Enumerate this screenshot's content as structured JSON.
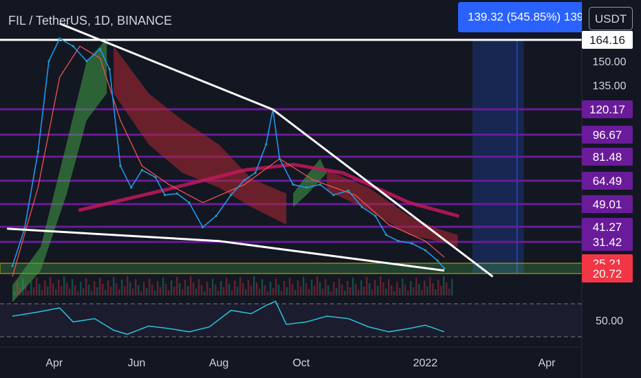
{
  "header": {
    "symbol": "FIL / TetherUS, 1D, BINANCE",
    "badge_text": "139.32 (545.85%) 139",
    "currency": "USDT"
  },
  "chart_data": {
    "type": "line",
    "title": "FIL / TetherUS, 1D, BINANCE",
    "x_ticks": [
      "Apr",
      "Jun",
      "Aug",
      "Oct",
      "2022",
      "Apr"
    ],
    "y_ticks": [
      "150.00",
      "135.00"
    ],
    "rsi_ticks": [
      "50.00"
    ],
    "grid": false,
    "price_labels": [
      {
        "value": 164.16,
        "text": "164.16",
        "color": "#ffffff",
        "text_color": "#131722"
      },
      {
        "value": 120.17,
        "text": "120.17",
        "color": "#6a1b9a",
        "text_color": "#ffffff"
      },
      {
        "value": 96.67,
        "text": "96.67",
        "color": "#6a1b9a",
        "text_color": "#ffffff"
      },
      {
        "value": 81.48,
        "text": "81.48",
        "color": "#6a1b9a",
        "text_color": "#ffffff"
      },
      {
        "value": 64.49,
        "text": "64.49",
        "color": "#6a1b9a",
        "text_color": "#ffffff"
      },
      {
        "value": 49.01,
        "text": "49.01",
        "color": "#6a1b9a",
        "text_color": "#ffffff"
      },
      {
        "value": 41.27,
        "text": "41.27",
        "color": "#6a1b9a",
        "text_color": "#ffffff"
      },
      {
        "value": 31.42,
        "text": "31.42",
        "color": "#6a1b9a",
        "text_color": "#ffffff"
      },
      {
        "value": 25.21,
        "text": "25.21",
        "color": "#f23645",
        "text_color": "#ffffff"
      },
      {
        "value": 20.72,
        "text": "20.72",
        "color": "#f23645",
        "text_color": "#ffffff"
      }
    ],
    "horizontal_levels": [
      164.16,
      120.17,
      96.67,
      81.48,
      64.49,
      49.01,
      41.27,
      31.42
    ],
    "support_zone": [
      20.72,
      25.21
    ],
    "price": [
      {
        "x": "2021-03-01",
        "y": 24
      },
      {
        "x": "2021-03-10",
        "y": 40
      },
      {
        "x": "2021-03-20",
        "y": 85
      },
      {
        "x": "2021-03-28",
        "y": 150
      },
      {
        "x": "2021-04-05",
        "y": 165
      },
      {
        "x": "2021-04-15",
        "y": 160
      },
      {
        "x": "2021-04-25",
        "y": 150
      },
      {
        "x": "2021-05-05",
        "y": 158
      },
      {
        "x": "2021-05-12",
        "y": 145
      },
      {
        "x": "2021-05-20",
        "y": 75
      },
      {
        "x": "2021-05-28",
        "y": 60
      },
      {
        "x": "2021-06-05",
        "y": 72
      },
      {
        "x": "2021-06-15",
        "y": 67
      },
      {
        "x": "2021-06-22",
        "y": 55
      },
      {
        "x": "2021-07-01",
        "y": 56
      },
      {
        "x": "2021-07-10",
        "y": 50
      },
      {
        "x": "2021-07-20",
        "y": 41
      },
      {
        "x": "2021-07-30",
        "y": 45
      },
      {
        "x": "2021-08-10",
        "y": 55
      },
      {
        "x": "2021-08-20",
        "y": 65
      },
      {
        "x": "2021-08-28",
        "y": 70
      },
      {
        "x": "2021-09-05",
        "y": 90
      },
      {
        "x": "2021-09-10",
        "y": 120
      },
      {
        "x": "2021-09-15",
        "y": 80
      },
      {
        "x": "2021-09-25",
        "y": 62
      },
      {
        "x": "2021-10-05",
        "y": 60
      },
      {
        "x": "2021-10-15",
        "y": 62
      },
      {
        "x": "2021-10-25",
        "y": 55
      },
      {
        "x": "2021-11-05",
        "y": 58
      },
      {
        "x": "2021-11-15",
        "y": 48
      },
      {
        "x": "2021-11-25",
        "y": 45
      },
      {
        "x": "2021-12-03",
        "y": 36
      },
      {
        "x": "2021-12-12",
        "y": 32
      },
      {
        "x": "2021-12-22",
        "y": 31
      },
      {
        "x": "2022-01-01",
        "y": 29
      },
      {
        "x": "2022-01-10",
        "y": 26
      },
      {
        "x": "2022-01-15",
        "y": 23
      }
    ],
    "moving_average": [
      {
        "x": "2021-03-01",
        "y": 20
      },
      {
        "x": "2021-03-20",
        "y": 60
      },
      {
        "x": "2021-04-05",
        "y": 140
      },
      {
        "x": "2021-04-20",
        "y": 160
      },
      {
        "x": "2021-05-05",
        "y": 152
      },
      {
        "x": "2021-05-20",
        "y": 110
      },
      {
        "x": "2021-06-05",
        "y": 75
      },
      {
        "x": "2021-06-25",
        "y": 62
      },
      {
        "x": "2021-07-20",
        "y": 50
      },
      {
        "x": "2021-08-20",
        "y": 62
      },
      {
        "x": "2021-09-15",
        "y": 80
      },
      {
        "x": "2021-10-10",
        "y": 65
      },
      {
        "x": "2021-11-10",
        "y": 55
      },
      {
        "x": "2021-12-05",
        "y": 42
      },
      {
        "x": "2022-01-01",
        "y": 32
      },
      {
        "x": "2022-01-15",
        "y": 27
      }
    ],
    "cloud_green": [
      [
        {
          "x": "2021-03-01",
          "y": 18
        },
        {
          "x": "2021-03-22",
          "y": 30
        },
        {
          "x": "2021-04-10",
          "y": 90
        },
        {
          "x": "2021-04-25",
          "y": 150
        },
        {
          "x": "2021-05-10",
          "y": 165
        },
        {
          "x": "2021-05-10",
          "y": 130
        },
        {
          "x": "2021-04-25",
          "y": 110
        },
        {
          "x": "2021-04-10",
          "y": 55
        },
        {
          "x": "2021-03-22",
          "y": 22
        },
        {
          "x": "2021-03-01",
          "y": 14
        }
      ],
      [
        {
          "x": "2021-10-15",
          "y": 80
        },
        {
          "x": "2021-10-20",
          "y": 70
        },
        {
          "x": "2021-10-05",
          "y": 55
        },
        {
          "x": "2021-09-25",
          "y": 48
        },
        {
          "x": "2021-09-25",
          "y": 56
        },
        {
          "x": "2021-10-05",
          "y": 68
        }
      ]
    ],
    "cloud_red": [
      [
        {
          "x": "2021-05-15",
          "y": 160
        },
        {
          "x": "2021-06-10",
          "y": 130
        },
        {
          "x": "2021-07-05",
          "y": 110
        },
        {
          "x": "2021-08-01",
          "y": 90
        },
        {
          "x": "2021-08-25",
          "y": 66
        },
        {
          "x": "2021-09-20",
          "y": 56
        },
        {
          "x": "2021-09-20",
          "y": 42
        },
        {
          "x": "2021-08-25",
          "y": 48
        },
        {
          "x": "2021-08-01",
          "y": 60
        },
        {
          "x": "2021-07-05",
          "y": 70
        },
        {
          "x": "2021-06-10",
          "y": 90
        },
        {
          "x": "2021-05-15",
          "y": 130
        }
      ],
      [
        {
          "x": "2021-10-20",
          "y": 72
        },
        {
          "x": "2021-11-20",
          "y": 60
        },
        {
          "x": "2021-12-20",
          "y": 45
        },
        {
          "x": "2022-01-10",
          "y": 40
        },
        {
          "x": "2022-01-25",
          "y": 36
        },
        {
          "x": "2022-01-25",
          "y": 30
        },
        {
          "x": "2022-01-10",
          "y": 32
        },
        {
          "x": "2021-12-20",
          "y": 36
        },
        {
          "x": "2021-11-20",
          "y": 47
        },
        {
          "x": "2021-10-20",
          "y": 58
        }
      ]
    ],
    "curve": [
      {
        "x": "2021-04-20",
        "y": 47
      },
      {
        "x": "2021-06-20",
        "y": 58
      },
      {
        "x": "2021-08-20",
        "y": 72
      },
      {
        "x": "2021-09-25",
        "y": 76
      },
      {
        "x": "2021-11-01",
        "y": 70
      },
      {
        "x": "2021-12-20",
        "y": 50
      },
      {
        "x": "2022-01-25",
        "y": 45
      }
    ],
    "trendlines": [
      {
        "points": [
          {
            "x": "2021-04-05",
            "y": 175
          },
          {
            "x": "2021-09-10",
            "y": 120
          },
          {
            "x": "2022-02-20",
            "y": 20
          }
        ]
      },
      {
        "points": [
          {
            "x": "2021-02-25",
            "y": 40
          },
          {
            "x": "2021-08-01",
            "y": 32
          },
          {
            "x": "2022-01-15",
            "y": 22
          }
        ]
      }
    ],
    "forecast_box": {
      "x_start": "2022-02-05",
      "x_end": "2022-03-15",
      "y_low": 20.72,
      "y_high": 164.16,
      "target_date": "2022-03-10"
    },
    "rsi": [
      {
        "x": "2021-03-01",
        "y": 55
      },
      {
        "x": "2021-03-20",
        "y": 60
      },
      {
        "x": "2021-04-05",
        "y": 65
      },
      {
        "x": "2021-04-15",
        "y": 48
      },
      {
        "x": "2021-05-01",
        "y": 52
      },
      {
        "x": "2021-05-15",
        "y": 38
      },
      {
        "x": "2021-05-25",
        "y": 33
      },
      {
        "x": "2021-06-10",
        "y": 43
      },
      {
        "x": "2021-06-25",
        "y": 40
      },
      {
        "x": "2021-07-10",
        "y": 36
      },
      {
        "x": "2021-07-25",
        "y": 42
      },
      {
        "x": "2021-08-10",
        "y": 62
      },
      {
        "x": "2021-08-25",
        "y": 58
      },
      {
        "x": "2021-09-05",
        "y": 68
      },
      {
        "x": "2021-09-12",
        "y": 73
      },
      {
        "x": "2021-09-20",
        "y": 45
      },
      {
        "x": "2021-10-05",
        "y": 48
      },
      {
        "x": "2021-10-20",
        "y": 55
      },
      {
        "x": "2021-11-05",
        "y": 52
      },
      {
        "x": "2021-11-20",
        "y": 42
      },
      {
        "x": "2021-12-05",
        "y": 36
      },
      {
        "x": "2021-12-20",
        "y": 40
      },
      {
        "x": "2022-01-01",
        "y": 44
      },
      {
        "x": "2022-01-15",
        "y": 36
      }
    ],
    "rsi_bands": [
      70,
      30
    ]
  }
}
